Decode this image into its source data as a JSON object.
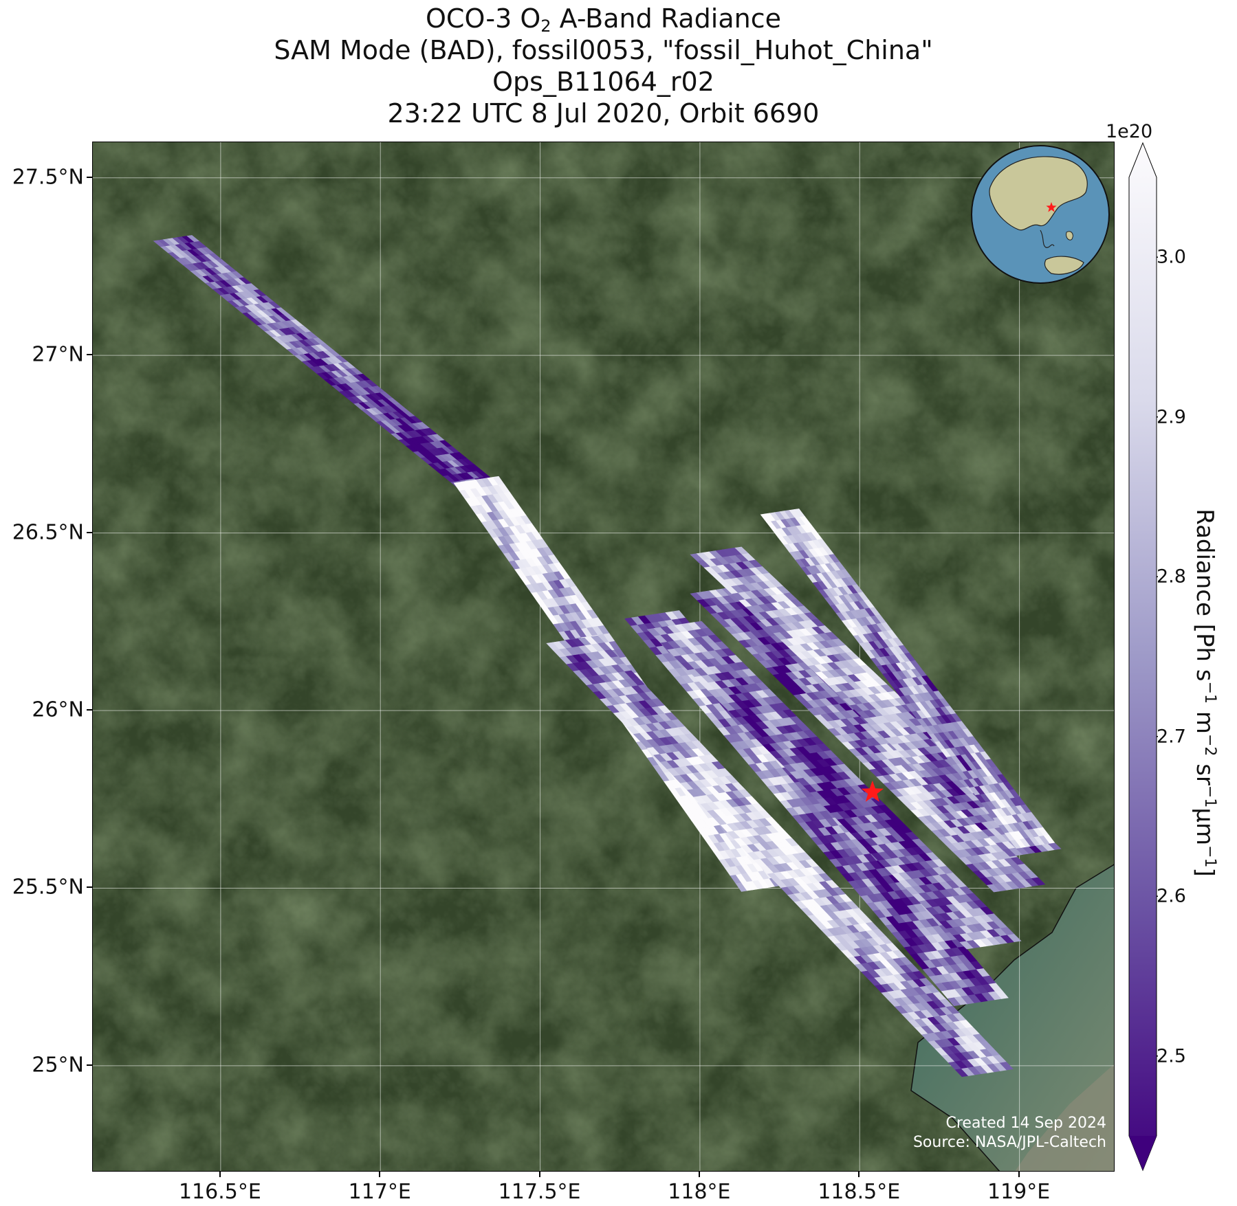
{
  "title": {
    "line1_pre": "OCO-3 O",
    "line1_sub": "2",
    "line1_post": " A-Band Radiance",
    "line2": "SAM Mode (BAD), fossil0053, \"fossil_Huhot_China\"",
    "line3": "Ops_B11064_r02",
    "line4": "23:22 UTC 8 Jul 2020, Orbit 6690"
  },
  "map": {
    "lon_range": [
      116.1,
      119.3
    ],
    "lat_range": [
      24.7,
      27.6
    ],
    "lon_ticks": [
      {
        "value": 116.5,
        "label": "116.5°E"
      },
      {
        "value": 117.0,
        "label": "117°E"
      },
      {
        "value": 117.5,
        "label": "117.5°E"
      },
      {
        "value": 118.0,
        "label": "118°E"
      },
      {
        "value": 118.5,
        "label": "118.5°E"
      },
      {
        "value": 119.0,
        "label": "119°E"
      }
    ],
    "lat_ticks": [
      {
        "value": 27.5,
        "label": "27.5°N"
      },
      {
        "value": 27.0,
        "label": "27°N"
      },
      {
        "value": 26.5,
        "label": "26.5°N"
      },
      {
        "value": 26.0,
        "label": "26°N"
      },
      {
        "value": 25.5,
        "label": "25.5°N"
      },
      {
        "value": 25.0,
        "label": "25°N"
      }
    ],
    "basemap_colors": {
      "land": "#34452a",
      "land_light": "#4d5e3a",
      "water": "#3f6a5e",
      "urban": "#8a8a78"
    },
    "target": {
      "lon": 118.54,
      "lat": 25.77,
      "color": "#ff1a1a"
    }
  },
  "chart_data": {
    "type": "heatmap",
    "variable": "Radiance",
    "units": "Ph s-1 m-2 sr-1 µm-1",
    "scale_factor": "1e20",
    "colorbar_range": [
      2.45,
      3.05
    ],
    "colormap": "Purples_r",
    "colorbar_ticks": [
      2.5,
      2.6,
      2.7,
      2.8,
      2.9,
      3.0
    ],
    "swaths": [
      {
        "start": [
          116.35,
          27.33
        ],
        "end": [
          117.35,
          26.6
        ],
        "width_deg": 0.12,
        "mean_value": 2.6
      },
      {
        "start": [
          117.3,
          26.65
        ],
        "end": [
          118.2,
          25.5
        ],
        "width_deg": 0.14,
        "mean_value": 2.95
      },
      {
        "start": [
          117.6,
          26.2
        ],
        "end": [
          118.9,
          24.98
        ],
        "width_deg": 0.16,
        "mean_value": 2.85
      },
      {
        "start": [
          117.85,
          26.27
        ],
        "end": [
          118.88,
          25.18
        ],
        "width_deg": 0.17,
        "mean_value": 2.7
      },
      {
        "start": [
          117.92,
          26.24
        ],
        "end": [
          118.92,
          25.34
        ],
        "width_deg": 0.17,
        "mean_value": 2.65
      },
      {
        "start": [
          118.05,
          26.34
        ],
        "end": [
          119.0,
          25.5
        ],
        "width_deg": 0.16,
        "mean_value": 2.7
      },
      {
        "start": [
          118.05,
          26.45
        ],
        "end": [
          119.05,
          25.6
        ],
        "width_deg": 0.16,
        "mean_value": 2.75
      },
      {
        "start": [
          118.25,
          26.56
        ],
        "end": [
          119.05,
          25.62
        ],
        "width_deg": 0.12,
        "mean_value": 2.8
      }
    ]
  },
  "inset": {
    "marker_color": "#ff1a1a",
    "ocean": "#5a93b8",
    "land": "#c9c79a"
  },
  "colorbar": {
    "exponent": "1e20",
    "tick_labels": [
      "3.0",
      "2.9",
      "2.8",
      "2.7",
      "2.6",
      "2.5"
    ],
    "label_pre": "Radiance [Ph s",
    "label_sup1": "−1",
    "label_mid1": " m",
    "label_sup2": "−2",
    "label_mid2": " sr",
    "label_sup3": "−1",
    "label_mid3": "µm",
    "label_sup4": "−1",
    "label_post": "]"
  },
  "credit": {
    "line1": "Created 14 Sep 2024",
    "line2": "Source: NASA/JPL-Caltech"
  }
}
